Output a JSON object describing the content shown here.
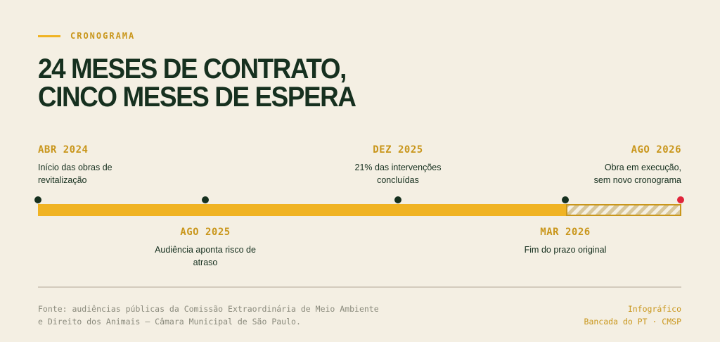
{
  "header": {
    "kicker": "CRONOGRAMA",
    "title_line1": "24 MESES DE CONTRATO,",
    "title_line2": "CINCO MESES DE ESPERA"
  },
  "timeline": {
    "events": [
      {
        "date": "ABR 2024",
        "desc_line1": "Início das obras de",
        "desc_line2": "revitalização"
      },
      {
        "date": "DEZ 2025",
        "desc_line1": "21% das intervenções",
        "desc_line2": "concluídas"
      },
      {
        "date": "AGO 2026",
        "desc_line1": "Obra em execução,",
        "desc_line2": "sem novo cronograma"
      },
      {
        "date": "AGO 2025",
        "desc_line1": "Audiência aponta risco de",
        "desc_line2": "atraso"
      },
      {
        "date": "MAR 2026",
        "desc_line1": "Fim do prazo original",
        "desc_line2": ""
      }
    ]
  },
  "colors": {
    "accent": "#f0b323",
    "date": "#c9961b",
    "ink": "#16301f",
    "alert": "#e0243a",
    "background": "#f4efe3"
  },
  "footer": {
    "source_line1": "Fonte: audiências públicas da Comissão Extraordinária de Meio Ambiente",
    "source_line2": "e Direito dos Animais — Câmara Municipal de São Paulo.",
    "credit_line1": "Infográfico",
    "credit_line2": "Bancada do PT · CMSP"
  }
}
